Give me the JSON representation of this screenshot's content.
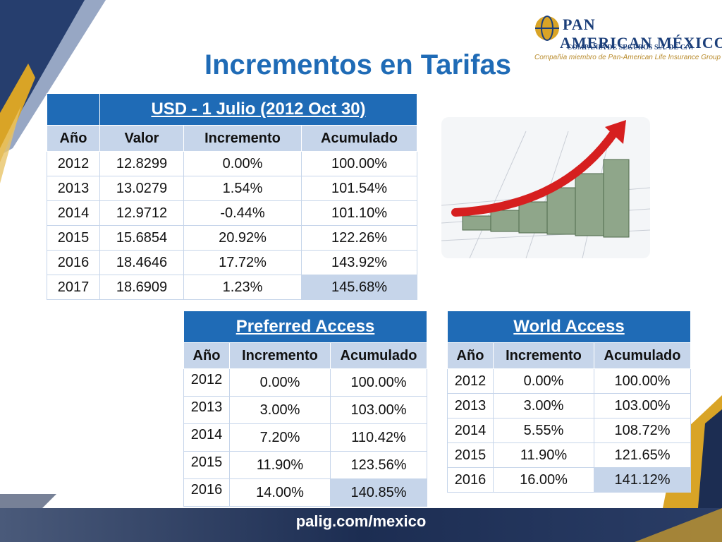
{
  "title": "Incrementos en Tarifas",
  "logo": {
    "main_line1": "PAN",
    "main_line2": "AMERICAN MÉXICO",
    "sub": "COMPAÑIA DE SEGUROS S.A. DE C.V.",
    "tagline": "Compañía miembro de Pan-American Life Insurance Group"
  },
  "usd_table": {
    "heading": "USD - 1 Julio (2012 Oct 30)",
    "columns": [
      "Año",
      "Valor",
      "Incremento",
      "Acumulado"
    ],
    "rows": [
      [
        "2012",
        "12.8299",
        "0.00%",
        "100.00%"
      ],
      [
        "2013",
        "13.0279",
        "1.54%",
        "101.54%"
      ],
      [
        "2014",
        "12.9712",
        "-0.44%",
        "101.10%"
      ],
      [
        "2015",
        "15.6854",
        "20.92%",
        "122.26%"
      ],
      [
        "2016",
        "18.4646",
        "17.72%",
        "143.92%"
      ],
      [
        "2017",
        "18.6909",
        "1.23%",
        "145.68%"
      ]
    ]
  },
  "preferred_table": {
    "heading": "Preferred Access",
    "columns": [
      "Año",
      "Incremento",
      "Acumulado"
    ],
    "rows": [
      [
        "2012",
        "0.00%",
        "100.00%"
      ],
      [
        "2013",
        "3.00%",
        "103.00%"
      ],
      [
        "2014",
        "7.20%",
        "110.42%"
      ],
      [
        "2015",
        "11.90%",
        "123.56%"
      ],
      [
        "2016",
        "14.00%",
        "140.85%"
      ]
    ]
  },
  "world_table": {
    "heading": "World Access",
    "columns": [
      "Año",
      "Incremento",
      "Acumulado"
    ],
    "rows": [
      [
        "2012",
        "0.00%",
        "100.00%"
      ],
      [
        "2013",
        "3.00%",
        "103.00%"
      ],
      [
        "2014",
        "5.55%",
        "108.72%"
      ],
      [
        "2015",
        "11.90%",
        "121.65%"
      ],
      [
        "2016",
        "16.00%",
        "141.12%"
      ]
    ]
  },
  "footer": {
    "url": "palig.com/mexico"
  },
  "colors": {
    "accent_blue": "#1f6bb6",
    "light_blue": "#c6d5ea",
    "gold": "#d9a426",
    "navy": "#1c2d52"
  },
  "image": {
    "icon": "money-growth-arrow-icon"
  }
}
